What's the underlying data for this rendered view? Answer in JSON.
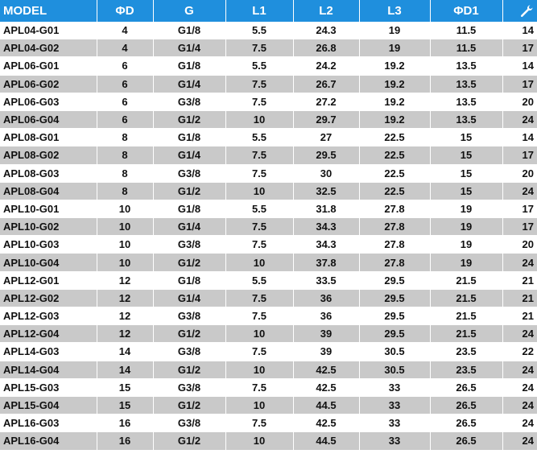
{
  "table": {
    "headers": [
      "MODEL",
      "ΦD",
      "G",
      "L1",
      "L2",
      "L3",
      "ΦD1"
    ],
    "wrench_icon": "wrench-icon",
    "header_color": "#1f8fdd",
    "stripe_color": "#c9c9c9",
    "rows": [
      [
        "APL04-G01",
        "4",
        "G1/8",
        "5.5",
        "24.3",
        "19",
        "11.5",
        "14"
      ],
      [
        "APL04-G02",
        "4",
        "G1/4",
        "7.5",
        "26.8",
        "19",
        "11.5",
        "17"
      ],
      [
        "APL06-G01",
        "6",
        "G1/8",
        "5.5",
        "24.2",
        "19.2",
        "13.5",
        "14"
      ],
      [
        "APL06-G02",
        "6",
        "G1/4",
        "7.5",
        "26.7",
        "19.2",
        "13.5",
        "17"
      ],
      [
        "APL06-G03",
        "6",
        "G3/8",
        "7.5",
        "27.2",
        "19.2",
        "13.5",
        "20"
      ],
      [
        "APL06-G04",
        "6",
        "G1/2",
        "10",
        "29.7",
        "19.2",
        "13.5",
        "24"
      ],
      [
        "APL08-G01",
        "8",
        "G1/8",
        "5.5",
        "27",
        "22.5",
        "15",
        "14"
      ],
      [
        "APL08-G02",
        "8",
        "G1/4",
        "7.5",
        "29.5",
        "22.5",
        "15",
        "17"
      ],
      [
        "APL08-G03",
        "8",
        "G3/8",
        "7.5",
        "30",
        "22.5",
        "15",
        "20"
      ],
      [
        "APL08-G04",
        "8",
        "G1/2",
        "10",
        "32.5",
        "22.5",
        "15",
        "24"
      ],
      [
        "APL10-G01",
        "10",
        "G1/8",
        "5.5",
        "31.8",
        "27.8",
        "19",
        "17"
      ],
      [
        "APL10-G02",
        "10",
        "G1/4",
        "7.5",
        "34.3",
        "27.8",
        "19",
        "17"
      ],
      [
        "APL10-G03",
        "10",
        "G3/8",
        "7.5",
        "34.3",
        "27.8",
        "19",
        "20"
      ],
      [
        "APL10-G04",
        "10",
        "G1/2",
        "10",
        "37.8",
        "27.8",
        "19",
        "24"
      ],
      [
        "APL12-G01",
        "12",
        "G1/8",
        "5.5",
        "33.5",
        "29.5",
        "21.5",
        "21"
      ],
      [
        "APL12-G02",
        "12",
        "G1/4",
        "7.5",
        "36",
        "29.5",
        "21.5",
        "21"
      ],
      [
        "APL12-G03",
        "12",
        "G3/8",
        "7.5",
        "36",
        "29.5",
        "21.5",
        "21"
      ],
      [
        "APL12-G04",
        "12",
        "G1/2",
        "10",
        "39",
        "29.5",
        "21.5",
        "24"
      ],
      [
        "APL14-G03",
        "14",
        "G3/8",
        "7.5",
        "39",
        "30.5",
        "23.5",
        "22"
      ],
      [
        "APL14-G04",
        "14",
        "G1/2",
        "10",
        "42.5",
        "30.5",
        "23.5",
        "24"
      ],
      [
        "APL15-G03",
        "15",
        "G3/8",
        "7.5",
        "42.5",
        "33",
        "26.5",
        "24"
      ],
      [
        "APL15-G04",
        "15",
        "G1/2",
        "10",
        "44.5",
        "33",
        "26.5",
        "24"
      ],
      [
        "APL16-G03",
        "16",
        "G3/8",
        "7.5",
        "42.5",
        "33",
        "26.5",
        "24"
      ],
      [
        "APL16-G04",
        "16",
        "G1/2",
        "10",
        "44.5",
        "33",
        "26.5",
        "24"
      ]
    ]
  }
}
